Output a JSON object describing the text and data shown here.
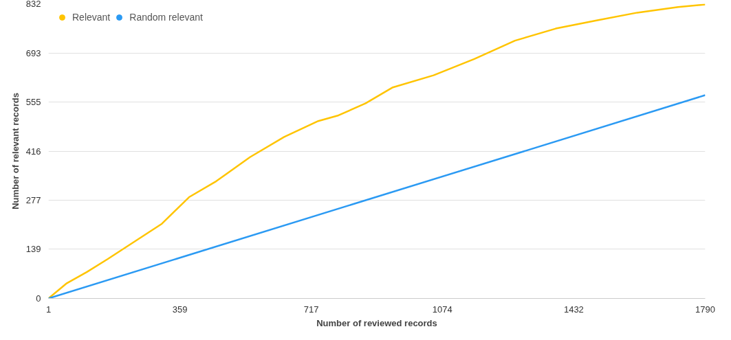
{
  "chart_data": {
    "type": "line",
    "xlabel": "Number of reviewed records",
    "ylabel": "Number of relevant records",
    "xlim": [
      1,
      1790
    ],
    "xticks": [
      1,
      359,
      717,
      1074,
      1432,
      1790
    ],
    "ylim": [
      0,
      832
    ],
    "yticks": [
      0,
      139,
      277,
      416,
      555,
      693,
      832
    ],
    "grid": "y",
    "legend": "top left",
    "marker": "none",
    "line_style": "solid",
    "series": [
      {
        "name": "Relevant",
        "color": "#ffc400",
        "x": [
          1,
          51,
          106,
          162,
          236,
          310,
          384,
          458,
          550,
          643,
          736,
          791,
          865,
          939,
          1050,
          1161,
          1272,
          1383,
          1494,
          1605,
          1716,
          1790
        ],
        "values": [
          0,
          43,
          75,
          111,
          161,
          211,
          286,
          331,
          399,
          456,
          501,
          517,
          551,
          596,
          630,
          676,
          728,
          762,
          785,
          807,
          823,
          830
        ]
      },
      {
        "name": "Random relevant",
        "color": "#2b9af3",
        "x": [
          1,
          1790
        ],
        "values": [
          0,
          574
        ]
      }
    ]
  }
}
